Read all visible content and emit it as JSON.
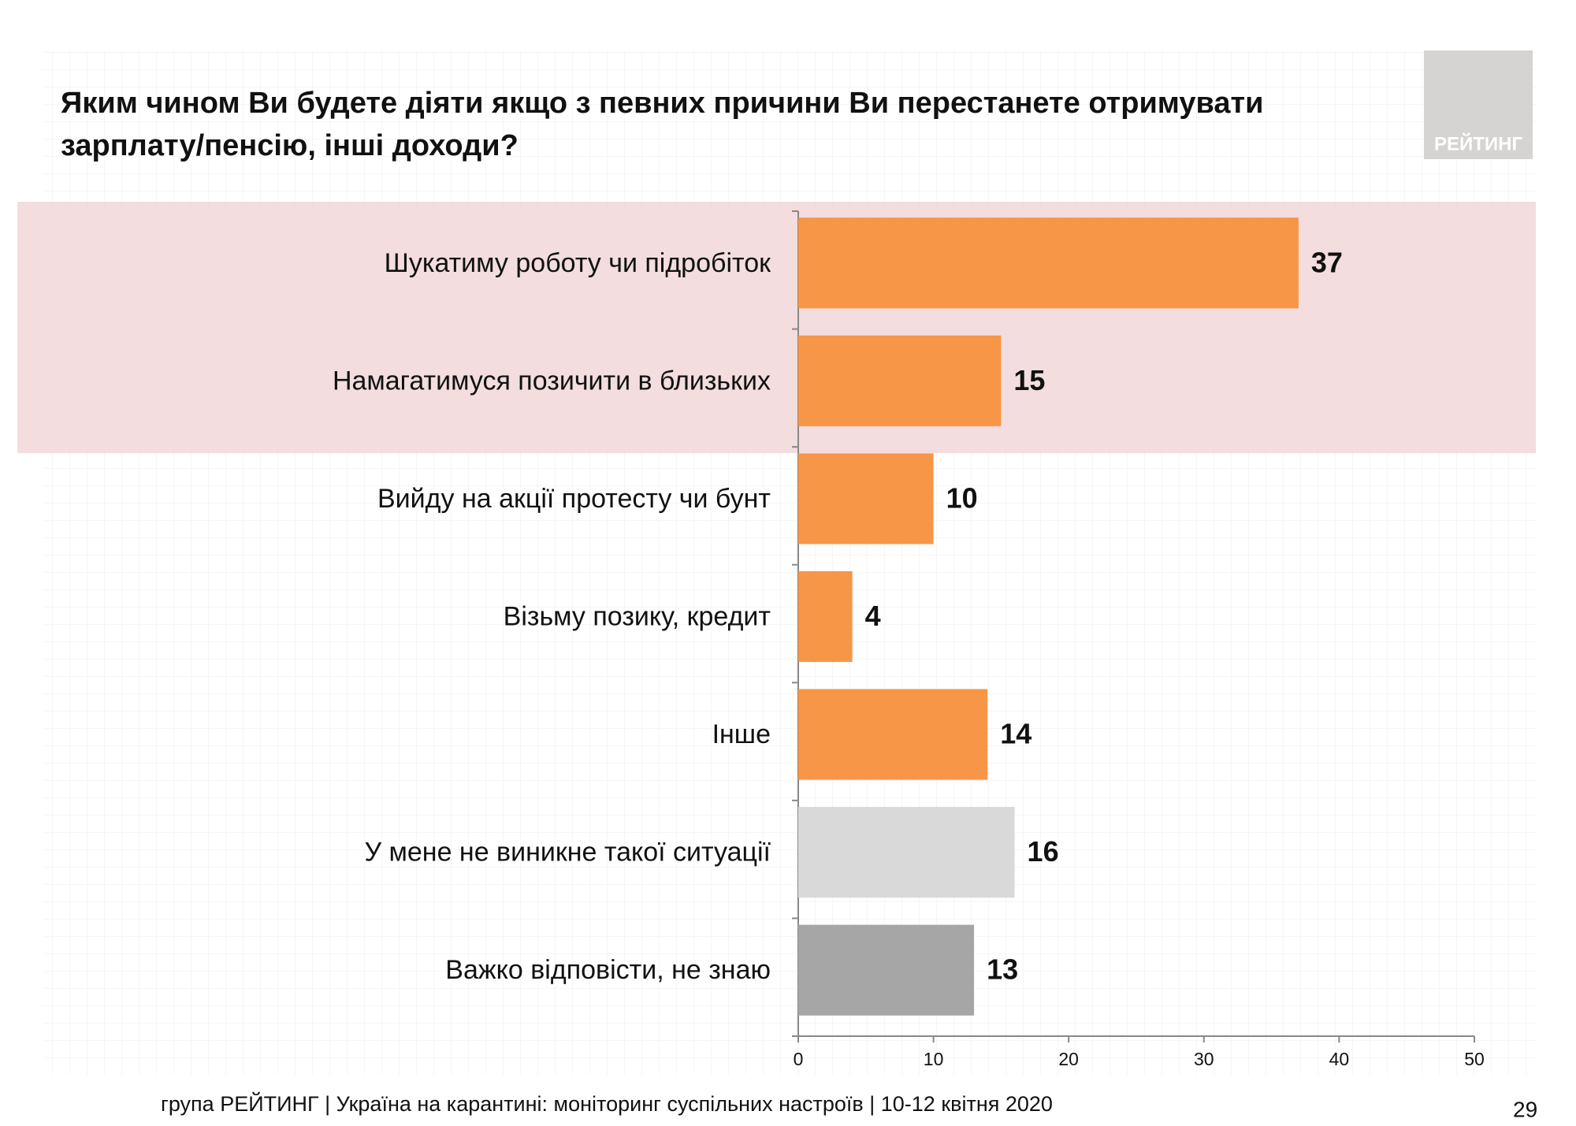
{
  "chart_data": {
    "type": "hbar",
    "title": [
      "Яким чином Ви будете діяти якщо з певних причини Ви перестанете отримувати",
      "зарплату/пенсію, інші доходи?"
    ],
    "categories": [
      "Шукатиму роботу чи підробіток",
      "Намагатимуся позичити в близьких",
      "Вийду на акції протесту чи бунт",
      "Візьму позику, кредит",
      "Інше",
      "У мене не виникне такої ситуації",
      "Важко відповісти, не знаю"
    ],
    "values": [
      37,
      15,
      10,
      4,
      14,
      16,
      13
    ],
    "colors": [
      "#f79646",
      "#f79646",
      "#f79646",
      "#f79646",
      "#f79646",
      "#d9d9d9",
      "#a6a6a6"
    ],
    "xlim": [
      0,
      50
    ],
    "xticks": [
      0,
      10,
      20,
      30,
      40,
      50
    ]
  },
  "logo": "РЕЙТИНГ",
  "footer": "група РЕЙТИНГ | Україна на карантині: моніторинг суспільних настроїв  | 10-12 квітня  2020",
  "page_number": "29"
}
